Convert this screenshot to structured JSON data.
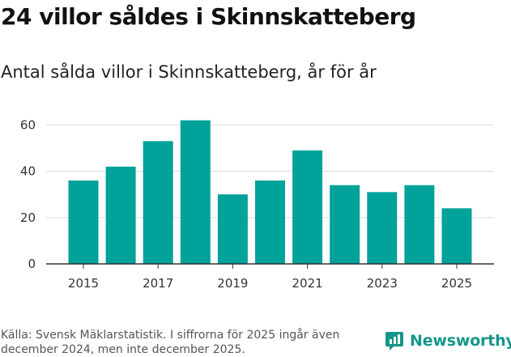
{
  "header": {
    "title": "24 villor såldes i Skinnskatteberg",
    "subtitle": "Antal sålda villor i Skinnskatteberg, år för år"
  },
  "footer": {
    "source": "Källa: Svensk Mäklarstatistik. I siffrorna för 2025 ingår även december 2024, men inte december 2025.",
    "brand": "Newsworthy",
    "brand_icon": "newsworthy-logo-icon"
  },
  "colors": {
    "bar": "#00a29a",
    "grid": "#dddddd",
    "axis": "#333333",
    "brand": "#15968a"
  },
  "chart_data": {
    "type": "bar",
    "title": "Antal sålda villor i Skinnskatteberg, år för år",
    "xlabel": "",
    "ylabel": "",
    "categories": [
      "2015",
      "2016",
      "2017",
      "2018",
      "2019",
      "2020",
      "2021",
      "2022",
      "2023",
      "2024",
      "2025"
    ],
    "values": [
      36,
      42,
      53,
      62,
      30,
      36,
      49,
      34,
      31,
      34,
      24
    ],
    "x_tick_labels": [
      "2015",
      "2017",
      "2019",
      "2021",
      "2023",
      "2025"
    ],
    "y_ticks": [
      0,
      20,
      40,
      60
    ],
    "ylim": [
      0,
      65
    ],
    "grid": true
  }
}
